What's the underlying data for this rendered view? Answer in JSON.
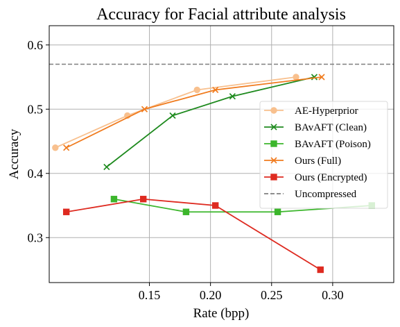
{
  "chart_data": {
    "type": "line",
    "title": "Accuracy for Facial attribute analysis",
    "xlabel": "Rate (bpp)",
    "ylabel": "Accuracy",
    "xlim": [
      0.068,
      0.35
    ],
    "ylim": [
      0.23,
      0.63
    ],
    "x_ticks": [
      0.15,
      0.2,
      0.25,
      0.3
    ],
    "x_tick_labels": [
      "0.15",
      "0.20",
      "0.25",
      "0.30"
    ],
    "y_ticks": [
      0.3,
      0.4,
      0.5,
      0.6
    ],
    "y_tick_labels": [
      "0.3",
      "0.4",
      "0.5",
      "0.6"
    ],
    "grid": true,
    "legend_position": "center-right",
    "series": [
      {
        "name": "AE-Hyperprior",
        "color": "#f8c08e",
        "marker": "circle",
        "x": [
          0.073,
          0.132,
          0.189,
          0.27
        ],
        "y": [
          0.44,
          0.49,
          0.53,
          0.55
        ]
      },
      {
        "name": "BAvAFT (Clean)",
        "color": "#1e8a1e",
        "marker": "x",
        "x": [
          0.115,
          0.169,
          0.218,
          0.285
        ],
        "y": [
          0.41,
          0.49,
          0.52,
          0.55
        ]
      },
      {
        "name": "BAvAFT (Poison)",
        "color": "#3cb62c",
        "marker": "square",
        "x": [
          0.121,
          0.18,
          0.255,
          0.332
        ],
        "y": [
          0.36,
          0.34,
          0.34,
          0.35
        ]
      },
      {
        "name": "Ours (Full)",
        "color": "#f07b1e",
        "marker": "x",
        "x": [
          0.082,
          0.146,
          0.204,
          0.291
        ],
        "y": [
          0.44,
          0.5,
          0.53,
          0.55
        ]
      },
      {
        "name": "Ours (Encrypted)",
        "color": "#de2a20",
        "marker": "square",
        "x": [
          0.082,
          0.145,
          0.204,
          0.29
        ],
        "y": [
          0.34,
          0.36,
          0.35,
          0.25
        ]
      }
    ],
    "reference_lines": [
      {
        "name": "Uncompressed",
        "color": "#7f7f7f",
        "style": "dashed",
        "y": 0.57
      }
    ]
  }
}
